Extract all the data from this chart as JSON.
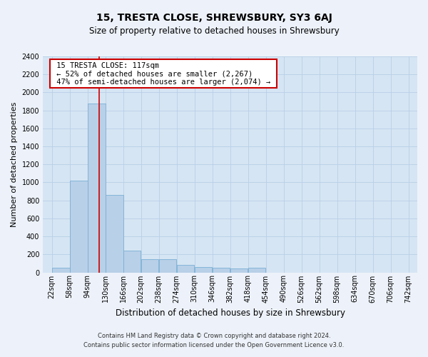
{
  "title": "15, TRESTA CLOSE, SHREWSBURY, SY3 6AJ",
  "subtitle": "Size of property relative to detached houses in Shrewsbury",
  "xlabel": "Distribution of detached houses by size in Shrewsbury",
  "ylabel": "Number of detached properties",
  "footer_line1": "Contains HM Land Registry data © Crown copyright and database right 2024.",
  "footer_line2": "Contains public sector information licensed under the Open Government Licence v3.0.",
  "annotation_title": "15 TRESTA CLOSE: 117sqm",
  "annotation_line1": "← 52% of detached houses are smaller (2,267)",
  "annotation_line2": "47% of semi-detached houses are larger (2,074) →",
  "bar_color": "#b8d0e8",
  "bar_edge_color": "#7aafd4",
  "bg_color": "#d6e5f3",
  "fig_bg_color": "#edf2fa",
  "vline_color": "#cc0000",
  "vline_x": 117,
  "bin_edges": [
    22,
    58,
    94,
    130,
    166,
    202,
    238,
    274,
    310,
    346,
    382,
    418,
    454,
    490,
    526,
    562,
    598,
    634,
    670,
    706,
    742
  ],
  "bar_heights": [
    50,
    1020,
    1880,
    860,
    240,
    150,
    150,
    80,
    60,
    55,
    40,
    50,
    0,
    0,
    0,
    0,
    0,
    0,
    0,
    0
  ],
  "ylim": [
    0,
    2400
  ],
  "yticks": [
    0,
    200,
    400,
    600,
    800,
    1000,
    1200,
    1400,
    1600,
    1800,
    2000,
    2200,
    2400
  ],
  "annotation_box_color": "#ffffff",
  "annotation_box_edge": "#cc0000",
  "grid_color": "#b8cfe8",
  "title_fontsize": 10,
  "subtitle_fontsize": 8.5,
  "ylabel_fontsize": 8,
  "xlabel_fontsize": 8.5,
  "footer_fontsize": 6,
  "tick_fontsize": 7,
  "annot_fontsize": 7.5
}
